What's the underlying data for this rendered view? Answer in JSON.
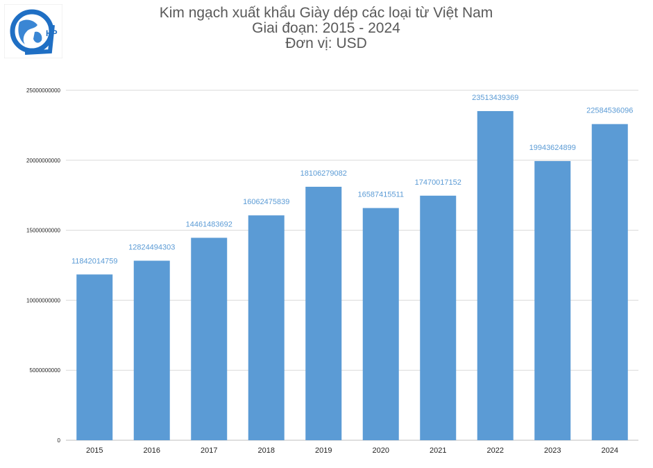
{
  "header": {
    "title_line1": "Kim ngạch xuất khẩu Giày dép các loại từ Việt Nam",
    "title_line2": "Giai đoạn: 2015 - 2024",
    "title_line3": "Đơn vị: USD",
    "logo_text": "HP"
  },
  "colors": {
    "bar": "#5b9bd5",
    "label": "#5b9bd5",
    "grid": "#d9d9d9",
    "title": "#595959",
    "logo_ring": "#1f6fc4"
  },
  "chart_data": {
    "type": "bar",
    "title": "Kim ngạch xuất khẩu Giày dép các loại từ Việt Nam",
    "subtitle": "Giai đoạn: 2015 - 2024",
    "unit": "Đơn vị: USD",
    "categories": [
      "2015",
      "2016",
      "2017",
      "2018",
      "2019",
      "2020",
      "2021",
      "2022",
      "2023",
      "2024"
    ],
    "values": [
      11842014759,
      12824494303,
      14461483692,
      16062475839,
      18106279082,
      16587415511,
      17470017152,
      23513439369,
      19943624899,
      22584536096
    ],
    "value_labels": [
      "11842014759",
      "12824494303",
      "14461483692",
      "16062475839",
      "18106279082",
      "16587415511",
      "17470017152",
      "23513439369",
      "19943624899",
      "22584536096"
    ],
    "yticks": [
      0,
      5000000000,
      10000000000,
      15000000000,
      20000000000,
      25000000000
    ],
    "ytick_labels": [
      "0",
      "5000000000",
      "10000000000",
      "15000000000",
      "20000000000",
      "25000000000"
    ],
    "ylim": [
      0,
      25000000000
    ],
    "grid": true,
    "legend": "none"
  }
}
